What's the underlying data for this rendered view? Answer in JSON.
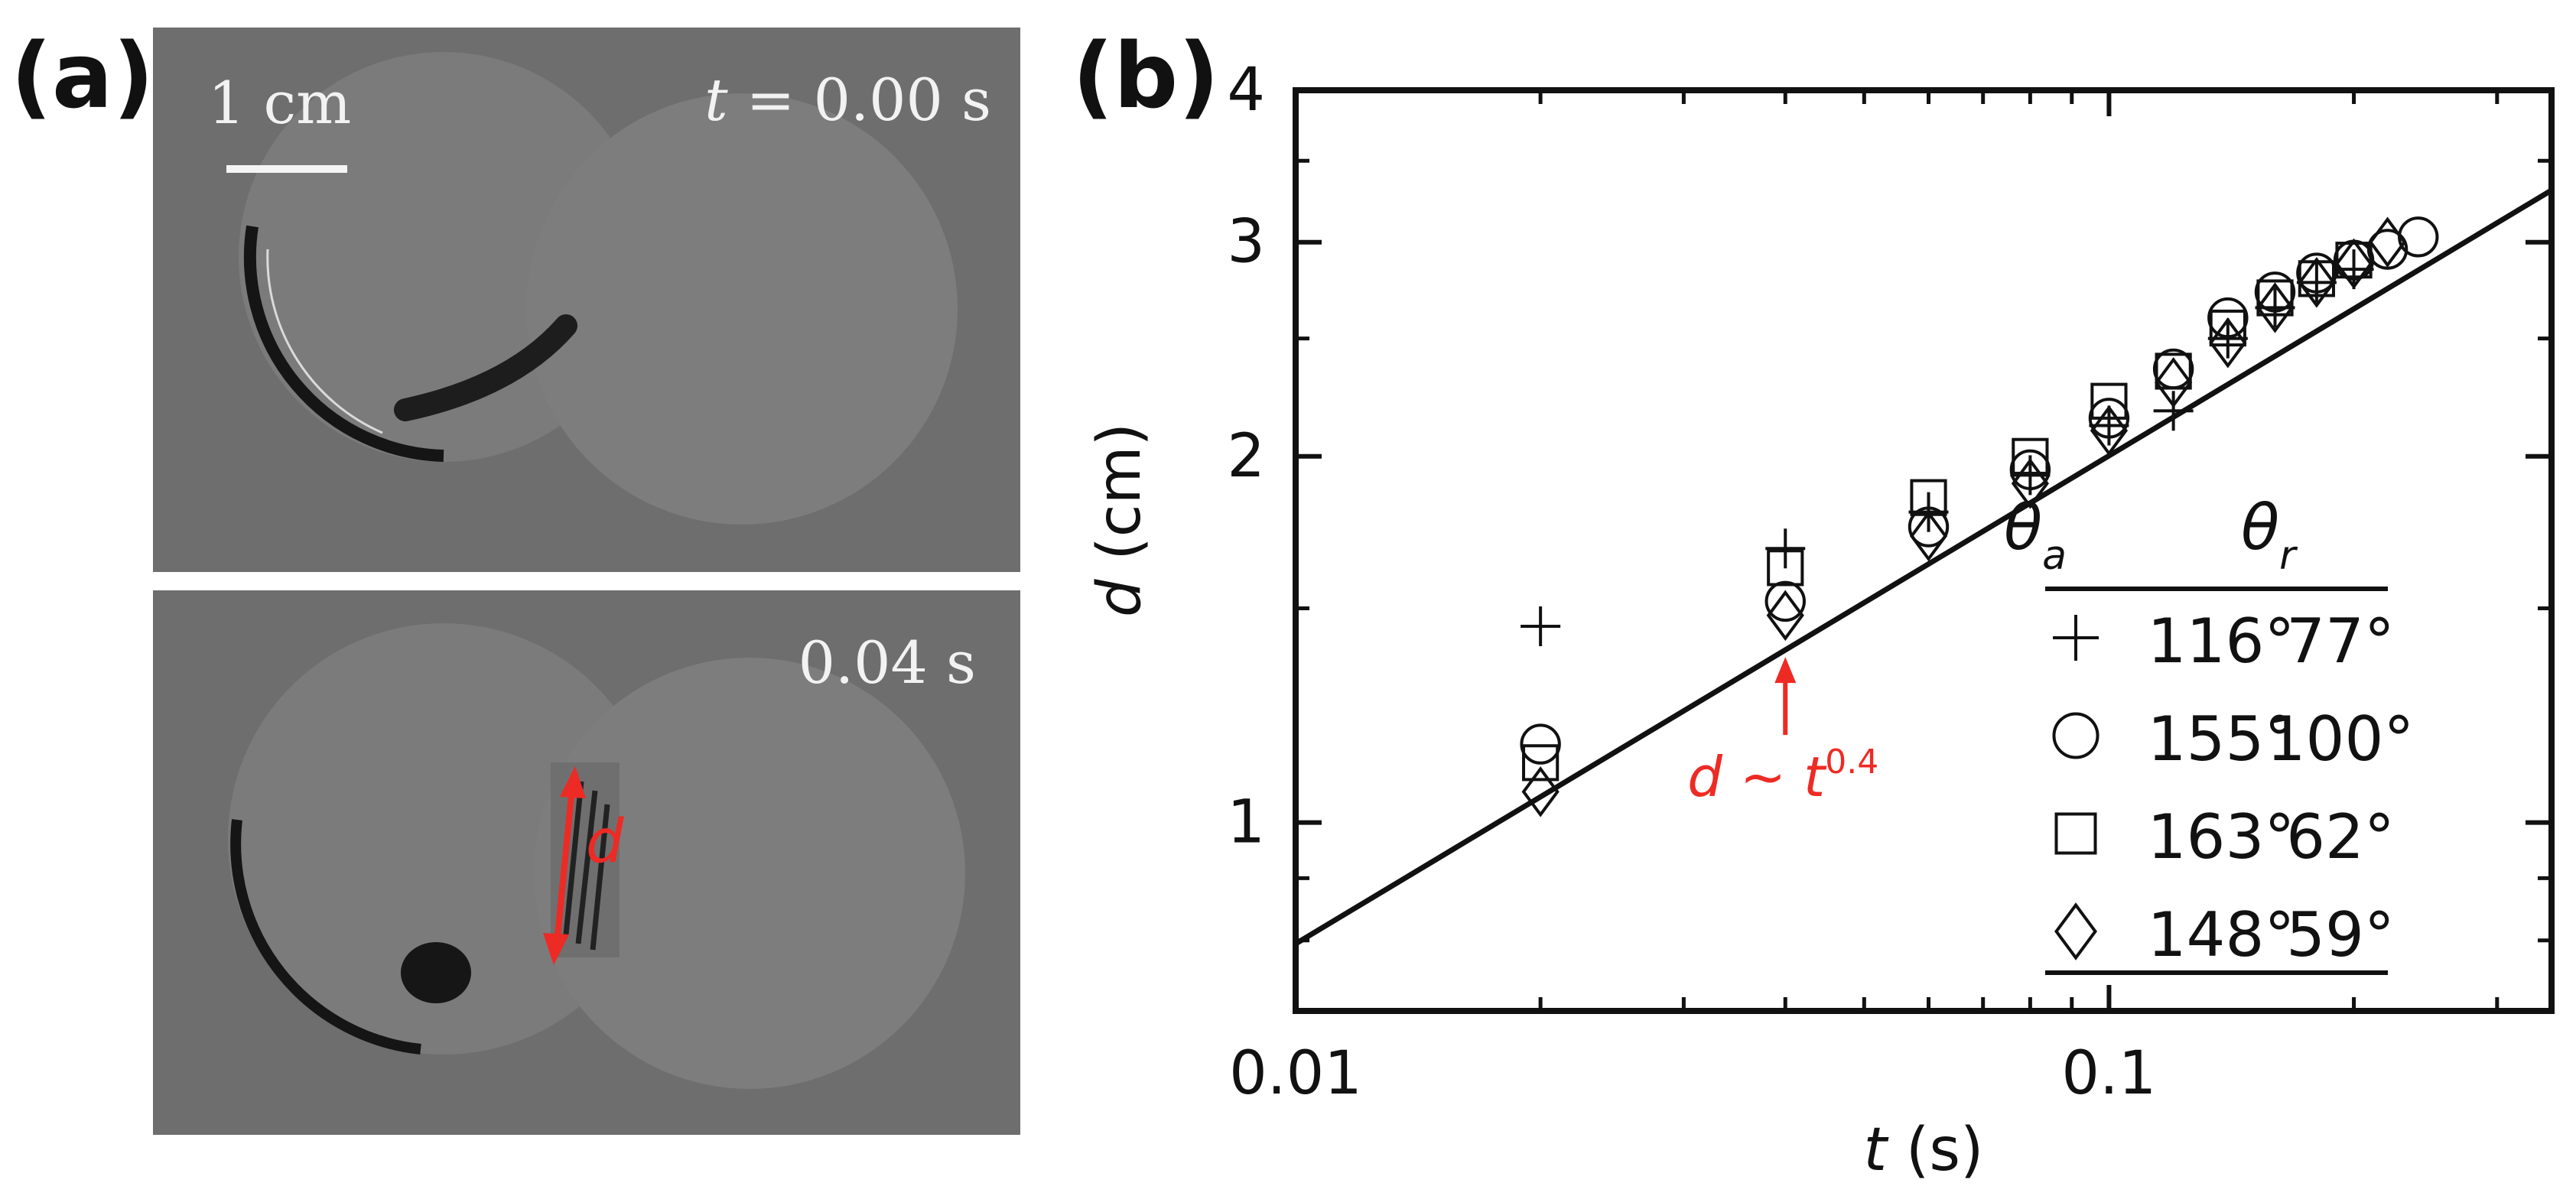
{
  "panel_a": {
    "label": "(a)",
    "scale_bar_label": "1 cm",
    "time_top_var": "t",
    "time_top_value": " = 0.00 s",
    "time_bottom": "0.04 s",
    "neck_label": "d"
  },
  "colors": {
    "photo_background": "#6e6e6e",
    "annotation_red": "#ee2a24",
    "axis_black": "#111111"
  },
  "chart_data": {
    "type": "scatter",
    "panel_label": "(b)",
    "xscale": "log",
    "yscale": "log",
    "xlim": [
      0.01,
      0.35
    ],
    "ylim": [
      0.7,
      4
    ],
    "xlabel_var": "t",
    "xlabel_unit": " (s)",
    "ylabel_var": "d",
    "ylabel_unit": " (cm)",
    "x_ticks": [
      {
        "value": 0.01,
        "label": "0.01"
      },
      {
        "value": 0.1,
        "label": "0.1"
      }
    ],
    "y_ticks": [
      {
        "value": 1,
        "label": "1"
      },
      {
        "value": 2,
        "label": "2"
      },
      {
        "value": 3,
        "label": "3"
      },
      {
        "value": 4,
        "label": "4"
      }
    ],
    "fit_line": {
      "x": [
        0.01,
        0.35
      ],
      "y": [
        0.795,
        3.31
      ],
      "annotation_var_d": "d",
      "annotation_tilde": " ~ ",
      "annotation_var_t": "t",
      "annotation_exponent": "0.4",
      "annotation_arrow_at": {
        "x": 0.04,
        "y": 1.38
      }
    },
    "legend": {
      "header_a_symbol": "θ",
      "header_a_sub": "a",
      "header_r_symbol": "θ",
      "header_r_sub": "r",
      "rows": [
        {
          "marker": "plus",
          "theta_a": "116°",
          "theta_r": "77°"
        },
        {
          "marker": "circle",
          "theta_a": "155°",
          "theta_r": "100°"
        },
        {
          "marker": "square",
          "theta_a": "163°",
          "theta_r": "62°"
        },
        {
          "marker": "diamond",
          "theta_a": "148°",
          "theta_r": "59°"
        }
      ]
    },
    "series": [
      {
        "marker": "plus",
        "x": [
          0.02,
          0.04,
          0.06,
          0.08,
          0.1,
          0.12,
          0.14,
          0.16,
          0.18,
          0.2
        ],
        "y": [
          1.45,
          1.68,
          1.8,
          1.93,
          2.12,
          2.18,
          2.5,
          2.65,
          2.78,
          2.85
        ]
      },
      {
        "marker": "circle",
        "x": [
          0.02,
          0.04,
          0.06,
          0.08,
          0.1,
          0.12,
          0.14,
          0.16,
          0.18,
          0.2,
          0.22,
          0.24
        ],
        "y": [
          1.16,
          1.52,
          1.75,
          1.95,
          2.15,
          2.36,
          2.6,
          2.73,
          2.83,
          2.9,
          2.96,
          3.03
        ]
      },
      {
        "marker": "square",
        "x": [
          0.02,
          0.04,
          0.06,
          0.08,
          0.1,
          0.12,
          0.14,
          0.16,
          0.18,
          0.2
        ],
        "y": [
          1.12,
          1.62,
          1.85,
          2.0,
          2.22,
          2.35,
          2.55,
          2.7,
          2.8,
          2.9
        ]
      },
      {
        "marker": "diamond",
        "x": [
          0.02,
          0.04,
          0.06,
          0.08,
          0.1,
          0.12,
          0.14,
          0.16,
          0.18,
          0.2,
          0.22
        ],
        "y": [
          1.06,
          1.48,
          1.72,
          1.9,
          2.1,
          2.3,
          2.48,
          2.65,
          2.78,
          2.88,
          3.0
        ]
      }
    ]
  }
}
